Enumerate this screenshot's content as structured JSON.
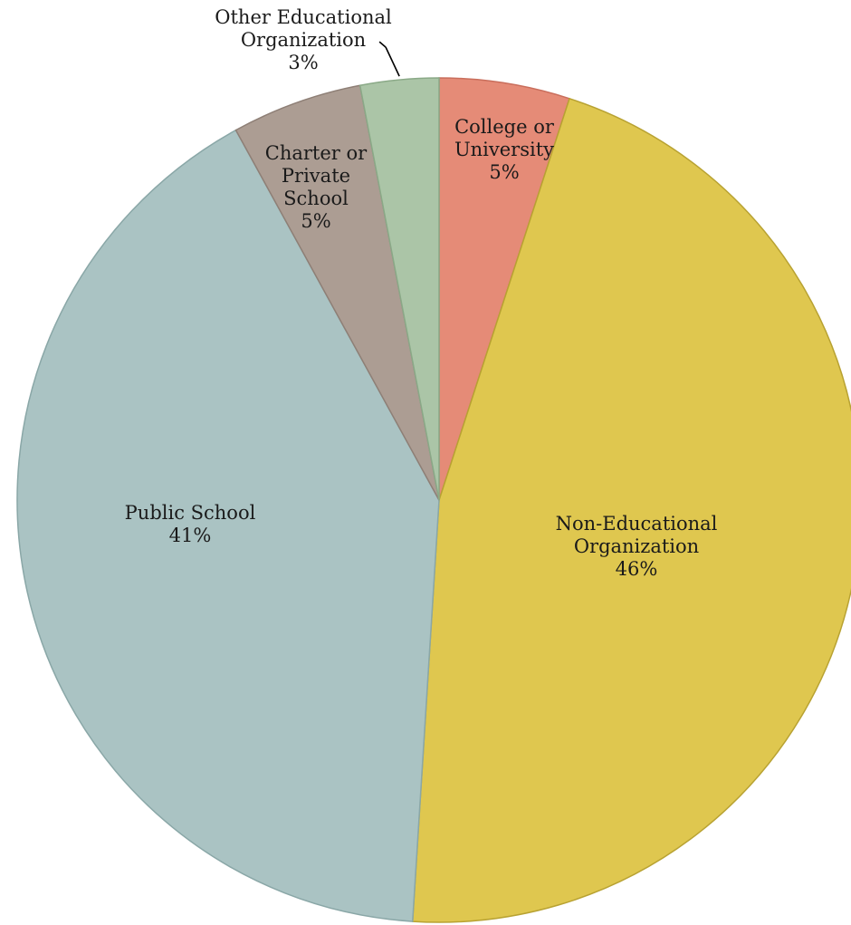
{
  "chart_data": {
    "type": "pie",
    "title": "",
    "start_angle_deg": 0,
    "direction": "clockwise",
    "slices": [
      {
        "label_lines": [
          "College or",
          "University"
        ],
        "value": 5,
        "value_label": "5%",
        "color": "#e58b77",
        "edge_color": "#c96e5c"
      },
      {
        "label_lines": [
          "Non-Educational",
          "Organization"
        ],
        "value": 46,
        "value_label": "46%",
        "color": "#dfc74f",
        "edge_color": "#b8a232"
      },
      {
        "label_lines": [
          "Public School"
        ],
        "value": 41,
        "value_label": "41%",
        "color": "#aac3c3",
        "edge_color": "#8aa7a7"
      },
      {
        "label_lines": [
          "Charter or",
          "Private",
          "School"
        ],
        "value": 5,
        "value_label": "5%",
        "color": "#ac9d93",
        "edge_color": "#8e7f76"
      },
      {
        "label_lines": [
          "Other Educational",
          "Organization"
        ],
        "value": 3,
        "value_label": "3%",
        "color": "#abc5a7",
        "edge_color": "#8aa987"
      }
    ],
    "legend": "none"
  }
}
